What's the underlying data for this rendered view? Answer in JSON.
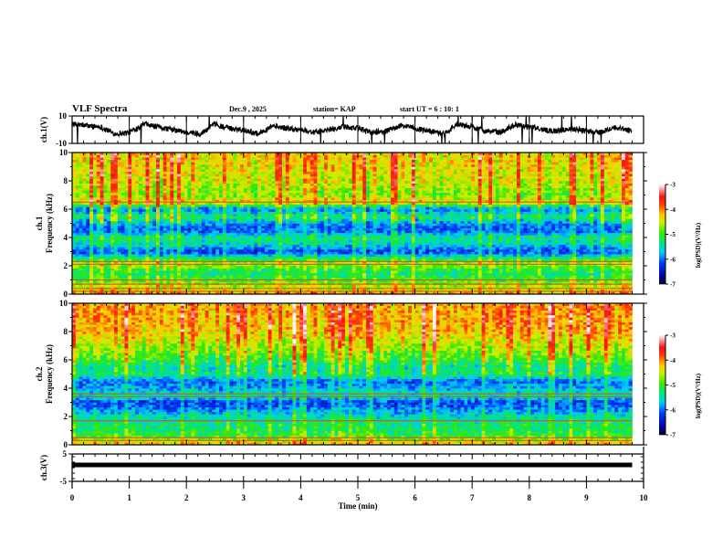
{
  "header": {
    "title": "VLF Spectra",
    "date": "Dec.9  , 2025",
    "station": "station= KAP",
    "start_ut": "start  UT =   6  : 10: 1"
  },
  "chart_data": [
    {
      "id": "ch1-waveform",
      "type": "line",
      "title": "",
      "ylabel": "ch.1(V)",
      "xlabel": "",
      "xlim": [
        0,
        10
      ],
      "ylim": [
        -10,
        10
      ],
      "yticks": [
        {
          "value": 10,
          "label": "10"
        },
        {
          "value": -10,
          "label": "-10"
        }
      ],
      "description": "Noisy waveform fluctuating roughly between -6 and 8 V with occasional spikes to the axis limits; data ends near 9.8 min",
      "series": [
        {
          "name": "ch.1",
          "x": [
            0,
            0.25,
            0.5,
            0.75,
            1.0,
            1.25,
            1.5,
            1.75,
            2.0,
            2.25,
            2.5,
            2.75,
            3.0,
            3.25,
            3.5,
            3.75,
            4.0,
            4.25,
            4.5,
            4.75,
            5.0,
            5.25,
            5.5,
            5.75,
            6.0,
            6.25,
            6.5,
            6.75,
            7.0,
            7.25,
            7.5,
            7.75,
            8.0,
            8.25,
            8.5,
            8.75,
            9.0,
            9.25,
            9.5,
            9.8
          ],
          "y": [
            4,
            3,
            2,
            -3,
            -2,
            4,
            2,
            0,
            -2,
            -3,
            4,
            1,
            0,
            -3,
            3,
            1,
            0,
            -2,
            0,
            2,
            1,
            -2,
            -1,
            3,
            1,
            -1,
            -3,
            4,
            2,
            -1,
            -2,
            4,
            2,
            0,
            -1,
            1,
            -1,
            -2,
            2,
            -1
          ]
        }
      ]
    },
    {
      "id": "ch1-spectrogram",
      "type": "heatmap",
      "title": "",
      "ylabel": "ch.1\nFrequency (kHz)",
      "ylabel_lines": [
        "ch.1",
        "Frequency (kHz)"
      ],
      "xlabel": "",
      "xlim": [
        0,
        10
      ],
      "ylim": [
        0,
        10
      ],
      "yticks": [
        {
          "value": 0,
          "label": "0"
        },
        {
          "value": 2,
          "label": "2"
        },
        {
          "value": 4,
          "label": "4"
        },
        {
          "value": 6,
          "label": "6"
        },
        {
          "value": 8,
          "label": "8"
        },
        {
          "value": 10,
          "label": "10"
        }
      ],
      "data_end_min": 9.8,
      "colorbar": {
        "label": "log(PSD)(V²/Hz)",
        "range": [
          -7,
          -3
        ],
        "ticks": [
          {
            "value": -3,
            "label": "-3"
          },
          {
            "value": -4,
            "label": "-4"
          },
          {
            "value": -5,
            "label": "-5"
          },
          {
            "value": -6,
            "label": "-6"
          },
          {
            "value": -7,
            "label": "-7"
          }
        ]
      },
      "frequency_profile": [
        {
          "f": 0.0,
          "v": -4.0
        },
        {
          "f": 0.3,
          "v": -4.5
        },
        {
          "f": 0.6,
          "v": -4.6
        },
        {
          "f": 1.0,
          "v": -5.0
        },
        {
          "f": 1.5,
          "v": -5.3
        },
        {
          "f": 2.2,
          "v": -4.6
        },
        {
          "f": 2.6,
          "v": -5.4
        },
        {
          "f": 3.0,
          "v": -6.2
        },
        {
          "f": 3.5,
          "v": -5.6
        },
        {
          "f": 4.0,
          "v": -5.3
        },
        {
          "f": 4.5,
          "v": -6.1
        },
        {
          "f": 5.0,
          "v": -5.9
        },
        {
          "f": 5.5,
          "v": -5.2
        },
        {
          "f": 6.0,
          "v": -6.0
        },
        {
          "f": 6.5,
          "v": -4.3
        },
        {
          "f": 7.0,
          "v": -4.8
        },
        {
          "f": 8.0,
          "v": -4.5
        },
        {
          "f": 9.0,
          "v": -4.4
        },
        {
          "f": 10.0,
          "v": -4.3
        }
      ],
      "horizontal_lines_khz": [
        0.2,
        0.4,
        0.7,
        1.0,
        2.1,
        2.3,
        6.5
      ]
    },
    {
      "id": "ch2-spectrogram",
      "type": "heatmap",
      "title": "",
      "ylabel": "ch.2\nFrequency (kHz)",
      "ylabel_lines": [
        "ch.2",
        "Frequency (kHz)"
      ],
      "xlabel": "",
      "xlim": [
        0,
        10
      ],
      "ylim": [
        0,
        10
      ],
      "yticks": [
        {
          "value": 0,
          "label": "0"
        },
        {
          "value": 2,
          "label": "2"
        },
        {
          "value": 4,
          "label": "4"
        },
        {
          "value": 6,
          "label": "6"
        },
        {
          "value": 8,
          "label": "8"
        },
        {
          "value": 10,
          "label": "10"
        }
      ],
      "data_end_min": 9.8,
      "colorbar": {
        "label": "log(PSD)(V²/Hz)",
        "range": [
          -7,
          -3
        ],
        "ticks": [
          {
            "value": -3,
            "label": "-3"
          },
          {
            "value": -4,
            "label": "-4"
          },
          {
            "value": -5,
            "label": "-5"
          },
          {
            "value": -6,
            "label": "-6"
          },
          {
            "value": -7,
            "label": "-7"
          }
        ]
      },
      "frequency_profile": [
        {
          "f": 0.0,
          "v": -4.2
        },
        {
          "f": 0.3,
          "v": -4.5
        },
        {
          "f": 0.6,
          "v": -5.0
        },
        {
          "f": 1.0,
          "v": -5.2
        },
        {
          "f": 1.5,
          "v": -5.3
        },
        {
          "f": 2.0,
          "v": -5.5
        },
        {
          "f": 2.5,
          "v": -5.9
        },
        {
          "f": 3.0,
          "v": -6.2
        },
        {
          "f": 3.5,
          "v": -5.4
        },
        {
          "f": 4.0,
          "v": -5.8
        },
        {
          "f": 4.5,
          "v": -6.0
        },
        {
          "f": 5.0,
          "v": -5.2
        },
        {
          "f": 5.5,
          "v": -5.4
        },
        {
          "f": 6.0,
          "v": -5.0
        },
        {
          "f": 7.0,
          "v": -4.6
        },
        {
          "f": 8.0,
          "v": -4.2
        },
        {
          "f": 9.0,
          "v": -4.1
        },
        {
          "f": 10.0,
          "v": -4.1
        }
      ],
      "horizontal_lines_khz": [
        0.3,
        0.5,
        1.7,
        3.4,
        3.6
      ]
    },
    {
      "id": "ch3-waveform",
      "type": "line",
      "title": "",
      "ylabel": "ch.3(V)",
      "xlabel": "Time  (min)",
      "xlim": [
        0,
        10
      ],
      "ylim": [
        -5,
        5
      ],
      "yticks": [
        {
          "value": 5,
          "label": "5"
        },
        {
          "value": -5,
          "label": "-5"
        }
      ],
      "xticks": [
        {
          "value": 0,
          "label": "0"
        },
        {
          "value": 1,
          "label": "1"
        },
        {
          "value": 2,
          "label": "2"
        },
        {
          "value": 3,
          "label": "3"
        },
        {
          "value": 4,
          "label": "4"
        },
        {
          "value": 5,
          "label": "5"
        },
        {
          "value": 6,
          "label": "6"
        },
        {
          "value": 7,
          "label": "7"
        },
        {
          "value": 8,
          "label": "8"
        },
        {
          "value": 9,
          "label": "9"
        },
        {
          "value": 10,
          "label": "10"
        }
      ],
      "description": "Nearly constant thick band around +1 V from 0 to ~9.8 min",
      "series": [
        {
          "name": "ch.3",
          "x": [
            0,
            9.8
          ],
          "y": [
            1.0,
            1.0
          ],
          "band_halfwidth_v": 0.5
        }
      ]
    }
  ]
}
